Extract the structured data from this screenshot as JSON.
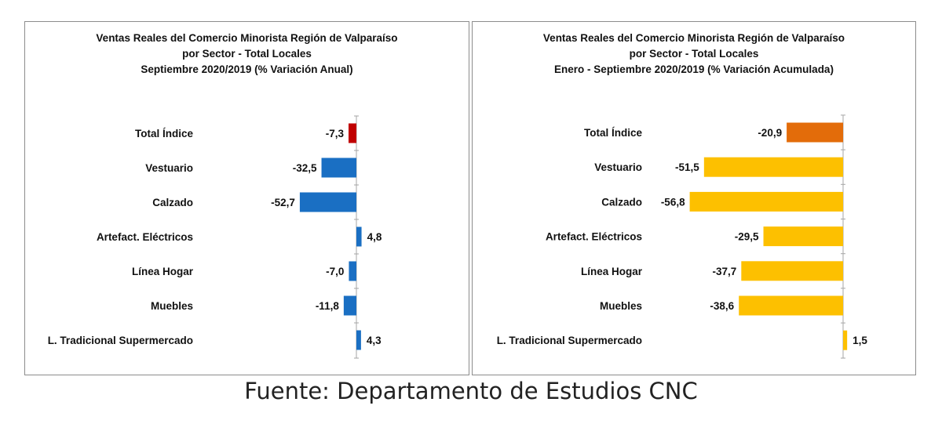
{
  "chart_data": [
    {
      "type": "bar",
      "orientation": "horizontal",
      "title": "Ventas Reales del Comercio Minorista Región de Valparaíso",
      "subtitle_1": "por Sector - Total Locales",
      "subtitle_2": "Septiembre 2020/2019 (% Variación Anual)",
      "categories": [
        "Total Índice",
        "Vestuario",
        "Calzado",
        "Artefact. Eléctricos",
        "Línea Hogar",
        "Muebles",
        "L. Tradicional Supermercado"
      ],
      "values": [
        -7.3,
        -32.5,
        -52.7,
        4.8,
        -7.0,
        -11.8,
        4.3
      ],
      "value_labels": [
        "-7,3",
        "-32,5",
        "-52,7",
        "4,8",
        "-7,0",
        "-11,8",
        "4,3"
      ],
      "colors": [
        "#c00000",
        "#1a6fc3",
        "#1a6fc3",
        "#1a6fc3",
        "#1a6fc3",
        "#1a6fc3",
        "#1a6fc3"
      ],
      "xlim": [
        -60,
        0
      ],
      "grid": false,
      "legend": "none"
    },
    {
      "type": "bar",
      "orientation": "horizontal",
      "title": "Ventas Reales del Comercio Minorista Región de Valparaíso",
      "subtitle_1": "por Sector  - Total Locales",
      "subtitle_2": "Enero - Septiembre  2020/2019 (% Variación Acumulada)",
      "categories": [
        "Total Índice",
        "Vestuario",
        "Calzado",
        "Artefact. Eléctricos",
        "Línea Hogar",
        "Muebles",
        "L. Tradicional Supermercado"
      ],
      "values": [
        -20.9,
        -51.5,
        -56.8,
        -29.5,
        -37.7,
        -38.6,
        1.5
      ],
      "value_labels": [
        "-20,9",
        "-51,5",
        "-56,8",
        "-29,5",
        "-37,7",
        "-38,6",
        "1,5"
      ],
      "colors": [
        "#e36c0a",
        "#fdc000",
        "#fdc000",
        "#fdc000",
        "#fdc000",
        "#fdc000",
        "#fdc000"
      ],
      "xlim": [
        -60,
        0
      ],
      "grid": false,
      "legend": "none"
    }
  ],
  "source": "Fuente: Departamento de Estudios CNC"
}
